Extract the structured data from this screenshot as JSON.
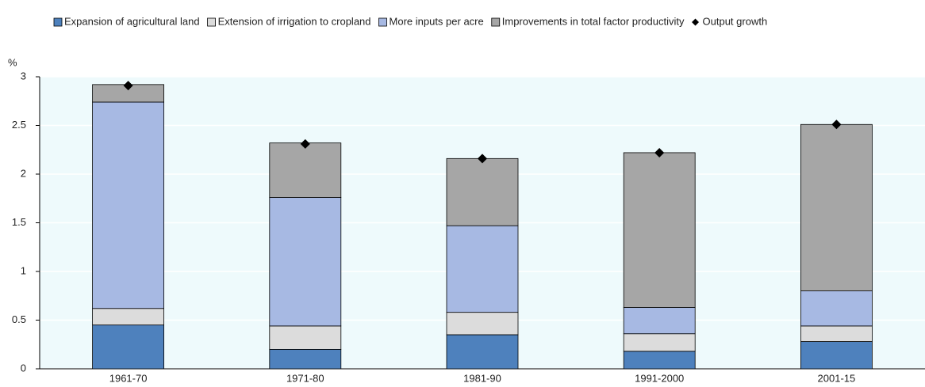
{
  "chart_data": {
    "type": "bar",
    "stacked": true,
    "y_label": "%",
    "categories": [
      "1961-70",
      "1971-80",
      "1981-90",
      "1991-2000",
      "2001-15"
    ],
    "series": [
      {
        "name": "Expansion of agricultural land",
        "type": "bar",
        "color": "#4e81bd",
        "values": [
          0.45,
          0.2,
          0.35,
          0.18,
          0.28
        ]
      },
      {
        "name": "Extension of irrigation to cropland",
        "type": "bar",
        "color": "#dcdcdc",
        "values": [
          0.17,
          0.24,
          0.23,
          0.18,
          0.16
        ]
      },
      {
        "name": "More inputs per acre",
        "type": "bar",
        "color": "#a7b9e3",
        "values": [
          2.12,
          1.32,
          0.89,
          0.27,
          0.36
        ]
      },
      {
        "name": "Improvements in total factor productivity",
        "type": "bar",
        "color": "#a6a6a6",
        "values": [
          0.18,
          0.56,
          0.69,
          1.59,
          1.71
        ]
      },
      {
        "name": "Output growth",
        "type": "scatter",
        "marker": "diamond",
        "color": "#000000",
        "values": [
          2.91,
          2.31,
          2.16,
          2.22,
          2.51
        ]
      }
    ],
    "ylim": [
      0,
      3
    ],
    "yticks": [
      0,
      0.5,
      1,
      1.5,
      2,
      2.5,
      3
    ],
    "grid": true,
    "legend": "top"
  }
}
